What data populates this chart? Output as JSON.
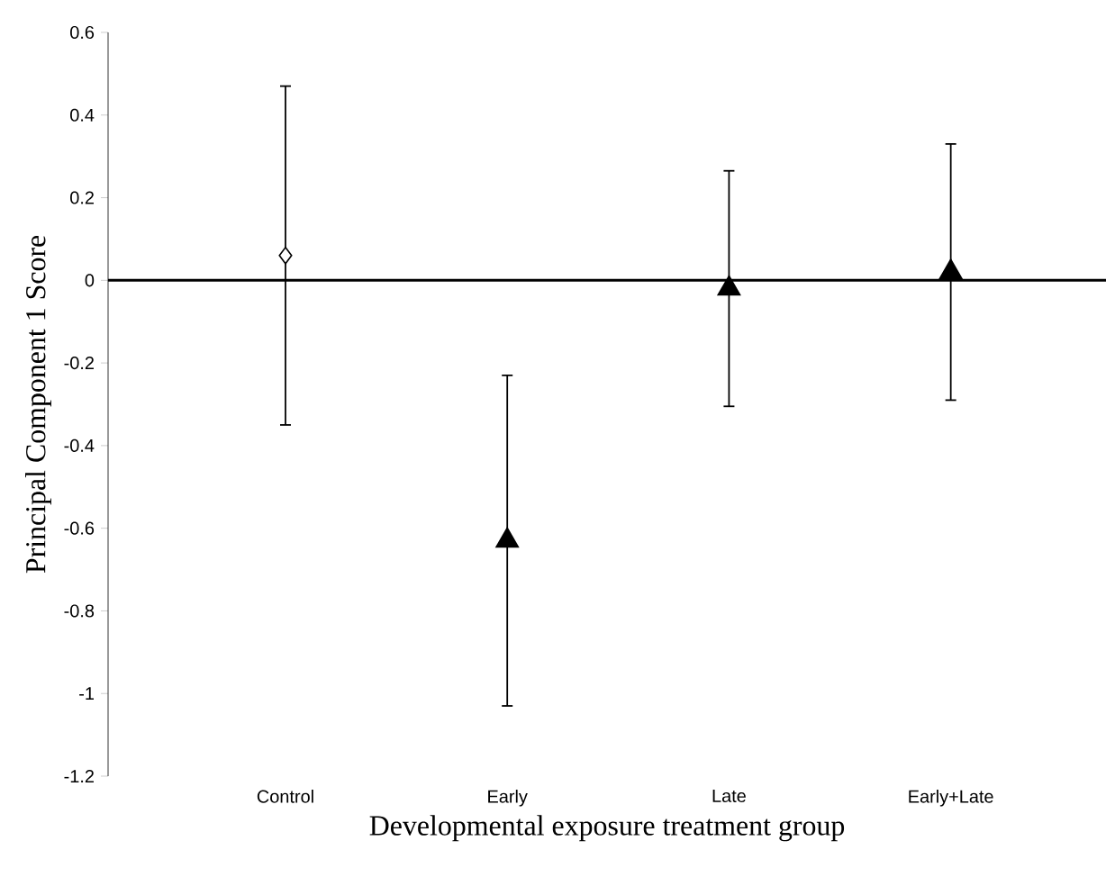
{
  "chart_data": {
    "type": "scatter",
    "xlabel": "Developmental exposure treatment group",
    "ylabel": "Principal Component 1 Score",
    "categories": [
      "Control",
      "Early",
      "Late",
      "Early+Late"
    ],
    "series": [
      {
        "color": "#ffffff",
        "marker": "diamond",
        "values": [
          0.06,
          null,
          null,
          null
        ],
        "errors": [
          0.41,
          null,
          null,
          null
        ]
      },
      {
        "color": "#000000",
        "marker": "triangle",
        "values": [
          null,
          -0.63,
          -0.02,
          0.02
        ],
        "errors": [
          null,
          0.4,
          0.285,
          0.31
        ]
      }
    ],
    "ylim": [
      -1.2,
      0.6
    ],
    "yticks": [
      -1.2,
      -1,
      -0.8,
      -0.6,
      -0.4,
      -0.2,
      0,
      0.2,
      0.4,
      0.6
    ],
    "ref_lines": [
      {
        "axis": "y",
        "value": 0,
        "color": "#000000"
      }
    ]
  }
}
